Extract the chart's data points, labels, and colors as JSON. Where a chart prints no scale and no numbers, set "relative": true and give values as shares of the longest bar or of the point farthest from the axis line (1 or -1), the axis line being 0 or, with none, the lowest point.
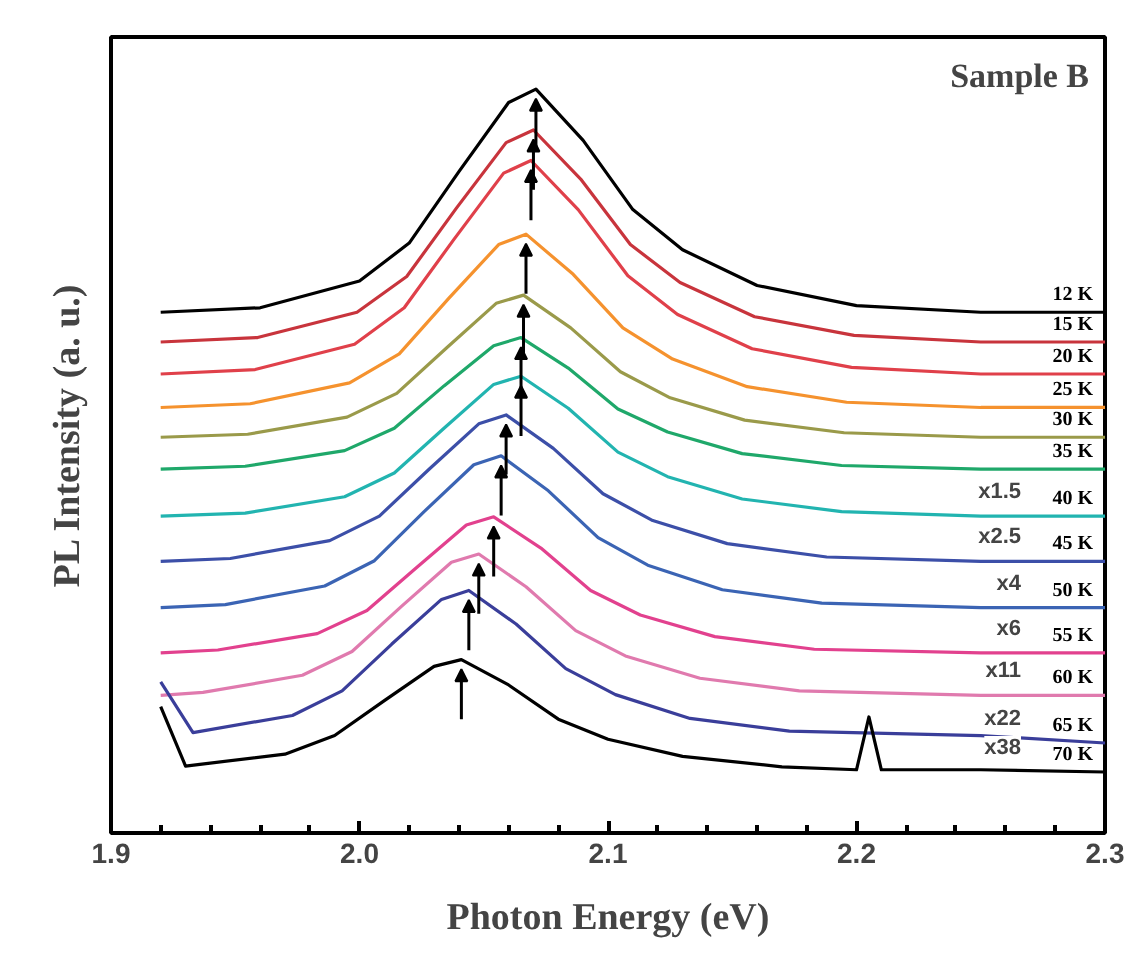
{
  "chart_data": {
    "type": "line",
    "relative": true,
    "title": "Sample B",
    "xlabel": "Photon Energy (eV)",
    "ylabel": "PL Intensity (a. u.)",
    "xlim": [
      1.9,
      2.3
    ],
    "xticks": [
      1.9,
      {
        "value": 2.0,
        "label": "2.0"
      },
      2.1,
      2.2,
      2.3
    ],
    "grid": false,
    "legend": false,
    "marker": "none",
    "line_style": "solid",
    "tick_labels": "x",
    "series": [
      {
        "name": "12 K",
        "color": "#000000",
        "x": [
          1.92,
          1.96,
          2.0,
          2.02,
          2.04,
          2.06,
          2.071,
          2.09,
          2.11,
          2.13,
          2.16,
          2.2,
          2.25,
          2.3
        ],
        "values": [
          0.7,
          0.706,
          0.742,
          0.793,
          0.889,
          0.982,
          1.0,
          0.931,
          0.838,
          0.784,
          0.736,
          0.709,
          0.7,
          0.7
        ]
      },
      {
        "name": "15 K",
        "color": "#c8343c",
        "x": [
          1.92,
          1.959,
          1.999,
          2.019,
          2.039,
          2.059,
          2.07,
          2.089,
          2.109,
          2.129,
          2.159,
          2.199,
          2.25,
          2.3
        ],
        "values": [
          0.66,
          0.666,
          0.7,
          0.748,
          0.84,
          0.928,
          0.945,
          0.879,
          0.791,
          0.74,
          0.694,
          0.669,
          0.66,
          0.66
        ]
      },
      {
        "name": "20 K",
        "color": "#e0404a",
        "x": [
          1.92,
          1.958,
          1.998,
          2.018,
          2.038,
          2.058,
          2.069,
          2.088,
          2.108,
          2.128,
          2.158,
          2.198,
          2.25,
          2.3
        ],
        "values": [
          0.617,
          0.623,
          0.657,
          0.706,
          0.798,
          0.887,
          0.904,
          0.838,
          0.749,
          0.697,
          0.651,
          0.626,
          0.617,
          0.617
        ]
      },
      {
        "name": "25 K",
        "color": "#f5922e",
        "x": [
          1.92,
          1.956,
          1.996,
          2.016,
          2.036,
          2.056,
          2.067,
          2.086,
          2.106,
          2.126,
          2.156,
          2.196,
          2.25,
          2.3
        ],
        "values": [
          0.572,
          0.577,
          0.605,
          0.644,
          0.719,
          0.791,
          0.805,
          0.751,
          0.679,
          0.637,
          0.6,
          0.579,
          0.572,
          0.572
        ]
      },
      {
        "name": "30 K",
        "color": "#9a9a4a",
        "x": [
          1.92,
          1.955,
          1.995,
          2.015,
          2.035,
          2.055,
          2.066,
          2.085,
          2.105,
          2.125,
          2.155,
          2.195,
          2.25,
          2.3
        ],
        "values": [
          0.532,
          0.536,
          0.559,
          0.591,
          0.652,
          0.712,
          0.723,
          0.679,
          0.62,
          0.585,
          0.555,
          0.538,
          0.532,
          0.532
        ]
      },
      {
        "name": "35 K",
        "color": "#1fa86a",
        "x": [
          1.92,
          1.954,
          1.994,
          2.014,
          2.034,
          2.054,
          2.065,
          2.084,
          2.104,
          2.124,
          2.154,
          2.194,
          2.25,
          2.3
        ],
        "values": [
          0.489,
          0.493,
          0.514,
          0.544,
          0.601,
          0.655,
          0.666,
          0.625,
          0.57,
          0.539,
          0.51,
          0.494,
          0.489,
          0.489
        ]
      },
      {
        "name": "40 K",
        "color": "#22b4b0",
        "x": [
          1.92,
          1.954,
          1.994,
          2.014,
          2.034,
          2.054,
          2.065,
          2.084,
          2.104,
          2.124,
          2.154,
          2.194,
          2.25,
          2.3
        ],
        "values": [
          0.426,
          0.43,
          0.452,
          0.484,
          0.544,
          0.603,
          0.614,
          0.571,
          0.512,
          0.479,
          0.449,
          0.432,
          0.426,
          0.426
        ]
      },
      {
        "name": "45 K",
        "color": "#3c4fa8",
        "x": [
          1.92,
          1.948,
          1.988,
          2.008,
          2.028,
          2.048,
          2.059,
          2.078,
          2.098,
          2.118,
          2.148,
          2.188,
          2.25,
          2.3
        ],
        "values": [
          0.365,
          0.369,
          0.393,
          0.426,
          0.489,
          0.55,
          0.562,
          0.517,
          0.456,
          0.42,
          0.389,
          0.371,
          0.365,
          0.365
        ]
      },
      {
        "name": "50 K",
        "color": "#3b64b4",
        "x": [
          1.92,
          1.946,
          1.986,
          2.006,
          2.026,
          2.046,
          2.057,
          2.076,
          2.096,
          2.116,
          2.146,
          2.186,
          2.25,
          2.3
        ],
        "values": [
          0.303,
          0.307,
          0.332,
          0.366,
          0.432,
          0.495,
          0.507,
          0.46,
          0.397,
          0.36,
          0.327,
          0.309,
          0.303,
          0.303
        ]
      },
      {
        "name": "55 K",
        "color": "#e2418e",
        "x": [
          1.92,
          1.943,
          1.983,
          2.003,
          2.023,
          2.043,
          2.054,
          2.073,
          2.093,
          2.113,
          2.143,
          2.183,
          2.25,
          2.3
        ],
        "values": [
          0.242,
          0.246,
          0.268,
          0.299,
          0.357,
          0.414,
          0.425,
          0.383,
          0.326,
          0.293,
          0.264,
          0.247,
          0.242,
          0.242
        ]
      },
      {
        "name": "60 K",
        "color": "#e07aae",
        "x": [
          1.92,
          1.937,
          1.977,
          1.997,
          2.017,
          2.037,
          2.048,
          2.067,
          2.087,
          2.107,
          2.137,
          2.177,
          2.25,
          2.3
        ],
        "values": [
          0.185,
          0.189,
          0.212,
          0.244,
          0.305,
          0.364,
          0.375,
          0.331,
          0.272,
          0.238,
          0.208,
          0.191,
          0.185,
          0.185
        ]
      },
      {
        "name": "65 K",
        "color": "#3a3e9a",
        "x": [
          1.92,
          1.933,
          1.973,
          1.993,
          2.013,
          2.033,
          2.044,
          2.063,
          2.083,
          2.103,
          2.133,
          2.173,
          2.25,
          2.3
        ],
        "values": [
          0.203,
          0.135,
          0.158,
          0.191,
          0.254,
          0.314,
          0.326,
          0.281,
          0.221,
          0.186,
          0.154,
          0.137,
          0.131,
          0.121
        ]
      },
      {
        "name": "70 K",
        "color": "#000000",
        "x": [
          1.92,
          1.93,
          1.97,
          1.99,
          2.01,
          2.03,
          2.041,
          2.06,
          2.08,
          2.1,
          2.13,
          2.17,
          2.2,
          2.205,
          2.21,
          2.25,
          2.3
        ],
        "values": [
          0.17,
          0.09,
          0.106,
          0.131,
          0.178,
          0.224,
          0.233,
          0.199,
          0.153,
          0.126,
          0.103,
          0.089,
          0.085,
          0.156,
          0.085,
          0.085,
          0.082
        ]
      }
    ],
    "annotations": [
      "x1.5",
      "x2.5",
      "x4",
      "x6",
      "x11",
      "x22",
      "x38"
    ]
  }
}
